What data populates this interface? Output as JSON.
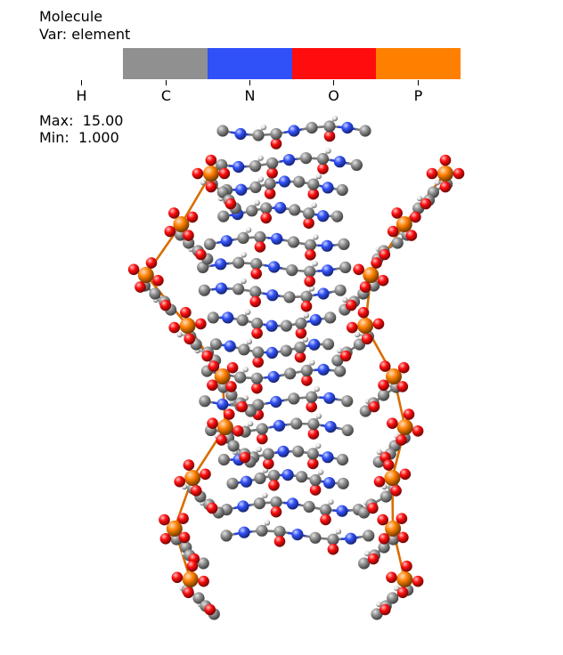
{
  "legend": {
    "title": "Molecule",
    "variable": "Var: element",
    "categories": [
      {
        "label": "H",
        "color": "#ffffff"
      },
      {
        "label": "C",
        "color": "#909090"
      },
      {
        "label": "N",
        "color": "#3050f8"
      },
      {
        "label": "O",
        "color": "#ff0d0d"
      },
      {
        "label": "P",
        "color": "#ff8000"
      }
    ],
    "max_text": "Max:  15.00",
    "min_text": "Min:  1.000"
  },
  "colors": {
    "H": "#ffffff",
    "C": "#909090",
    "N": "#3050f8",
    "O": "#ff0d0d",
    "P": "#ff8000"
  }
}
